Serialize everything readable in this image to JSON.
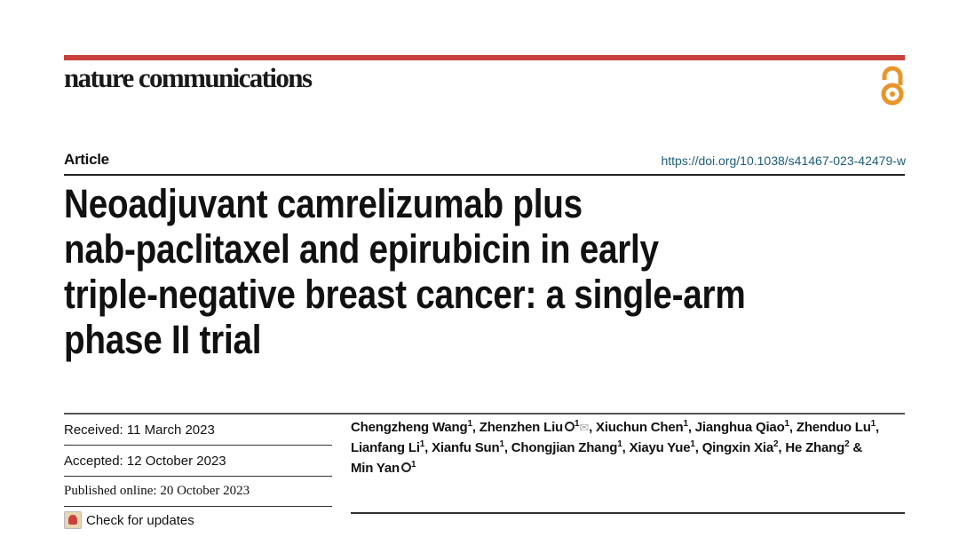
{
  "header": {
    "journal": "nature communications",
    "open_access_icon": "open-access-icon",
    "accent_color": "#c8413a",
    "oa_color": "#e8962c"
  },
  "article_type": "Article",
  "doi": "https://doi.org/10.1038/s41467-023-42479-w",
  "title_lines": [
    "Neoadjuvant camrelizumab plus",
    "nab-paclitaxel and epirubicin in early",
    "triple-negative breast cancer: a single-arm",
    "phase II trial"
  ],
  "dates": {
    "received": "Received: 11 March 2023",
    "accepted": "Accepted: 12 October 2023",
    "published": "Published online: 20 October 2023",
    "check_updates": "Check for updates"
  },
  "authors": [
    {
      "name": "Chengzheng Wang",
      "sup": "1",
      "sep": ", "
    },
    {
      "name": "Zhenzhen Liu",
      "sup": "1",
      "orcid": true,
      "email": true,
      "sep": ", "
    },
    {
      "name": "Xiuchun Chen",
      "sup": "1",
      "sep": ", "
    },
    {
      "name": "Jianghua Qiao",
      "sup": "1",
      "sep": ", "
    },
    {
      "name": "Zhenduo Lu",
      "sup": "1",
      "sep": ", "
    },
    {
      "name": "Lianfang Li",
      "sup": "1",
      "sep": ", "
    },
    {
      "name": "Xianfu Sun",
      "sup": "1",
      "sep": ", "
    },
    {
      "name": "Chongjian Zhang",
      "sup": "1",
      "sep": ", "
    },
    {
      "name": "Xiayu Yue",
      "sup": "1",
      "sep": ", "
    },
    {
      "name": "Qingxin Xia",
      "sup": "2",
      "sep": ", "
    },
    {
      "name": "He Zhang",
      "sup": "2",
      "sep": " & "
    },
    {
      "name": "Min Yan",
      "sup": "1",
      "orcid": true,
      "sep": ""
    }
  ]
}
